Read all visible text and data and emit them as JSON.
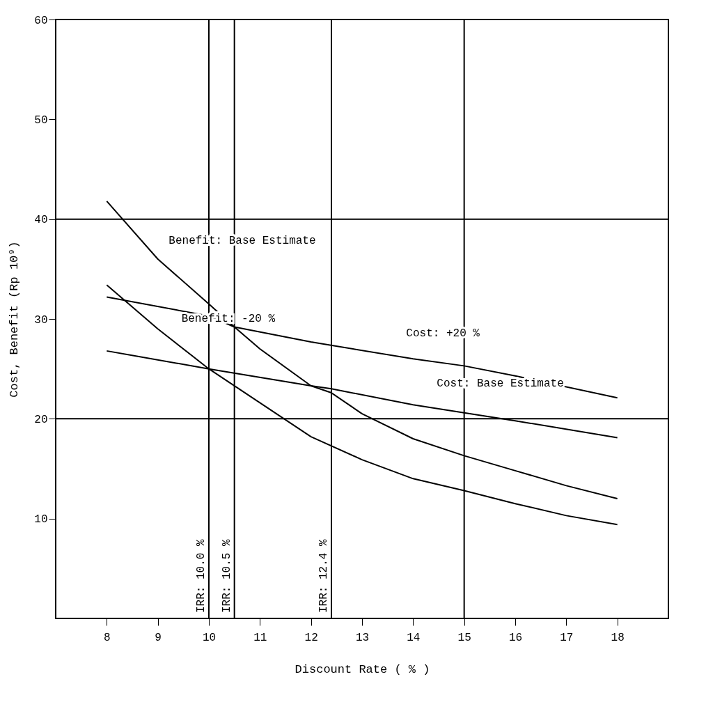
{
  "chart_data": {
    "type": "line",
    "xlabel": "Discount Rate ( % )",
    "ylabel": "Cost, Benefit (Rp 10⁹)",
    "xlim": [
      7,
      19
    ],
    "ylim": [
      0,
      60
    ],
    "xticks": [
      8,
      9,
      10,
      11,
      12,
      13,
      14,
      15,
      16,
      17,
      18
    ],
    "yticks": [
      10,
      20,
      30,
      40,
      50,
      60
    ],
    "grid": false,
    "legend": false,
    "marker": "none",
    "line_style": "solid",
    "series": [
      {
        "color": "#000000",
        "x": [
          8,
          9,
          10,
          10.5,
          11,
          12,
          12.4,
          13,
          14,
          15,
          16,
          17,
          18
        ],
        "values": [
          41.8,
          36,
          31.5,
          29.2,
          27,
          23.3,
          22.6,
          20.5,
          18,
          16.3,
          14.8,
          13.3,
          12
        ]
      },
      {
        "color": "#000000",
        "x": [
          8,
          9,
          10,
          11,
          12,
          13,
          14,
          15,
          16,
          17,
          18
        ],
        "values": [
          33.4,
          29,
          25,
          21.6,
          18.2,
          15.9,
          14,
          12.8,
          11.5,
          10.3,
          9.4
        ]
      },
      {
        "color": "#000000",
        "x": [
          8,
          10,
          10.5,
          12,
          14,
          15,
          16,
          18
        ],
        "values": [
          32.2,
          30.3,
          29.2,
          27.7,
          26,
          25.3,
          24.3,
          22.1
        ]
      },
      {
        "color": "#000000",
        "x": [
          8,
          10,
          12,
          12.4,
          14,
          16,
          18
        ],
        "values": [
          26.8,
          25,
          23.3,
          23,
          21.4,
          19.8,
          18.1
        ]
      }
    ],
    "ref_lines": [
      {
        "axis": "x",
        "value": 10,
        "label": "IRR: 10.0 %"
      },
      {
        "axis": "x",
        "value": 10.5,
        "label": "IRR: 10.5 %"
      },
      {
        "axis": "x",
        "value": 12.4,
        "label": "IRR: 12.4 %"
      },
      {
        "axis": "x",
        "value": 15
      },
      {
        "axis": "y",
        "value": 20
      },
      {
        "axis": "y",
        "value": 40
      }
    ],
    "annotations": [
      {
        "text": "Benefit: Base Estimate",
        "x": 9.05,
        "y": 35.8
      },
      {
        "text": "Benefit: -20 %",
        "x": 9.3,
        "y": 28
      },
      {
        "text": "Cost: +20 %",
        "x": 13.7,
        "y": 26.5
      },
      {
        "text": "Cost: Base Estimate",
        "x": 14.3,
        "y": 21.5
      }
    ]
  }
}
